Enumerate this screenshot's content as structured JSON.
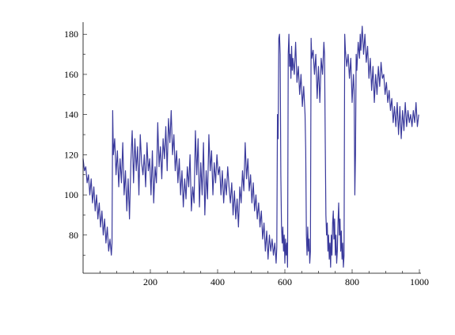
{
  "chart_data": {
    "type": "line",
    "title": "",
    "xlabel": "",
    "ylabel": "",
    "xlim": [
      0,
      1000
    ],
    "ylim": [
      61,
      186
    ],
    "grid": false,
    "legend": "none",
    "x_ticks": [
      200,
      400,
      600,
      800,
      1000
    ],
    "y_ticks": [
      80,
      100,
      120,
      140,
      160,
      180
    ],
    "x_tick_labels": [
      "200",
      "400",
      "600",
      "800",
      "1000"
    ],
    "y_tick_labels": [
      "80",
      "100",
      "120",
      "140",
      "160",
      "180"
    ],
    "series": [
      {
        "color": "#3a3a9c",
        "points": [
          [
            0,
            118
          ],
          [
            4,
            112
          ],
          [
            8,
            114
          ],
          [
            12,
            106
          ],
          [
            16,
            110
          ],
          [
            20,
            100
          ],
          [
            24,
            108
          ],
          [
            28,
            96
          ],
          [
            32,
            104
          ],
          [
            36,
            92
          ],
          [
            40,
            100
          ],
          [
            44,
            88
          ],
          [
            48,
            96
          ],
          [
            52,
            84
          ],
          [
            56,
            92
          ],
          [
            60,
            80
          ],
          [
            64,
            88
          ],
          [
            68,
            76
          ],
          [
            72,
            84
          ],
          [
            76,
            72
          ],
          [
            80,
            78
          ],
          [
            84,
            70
          ],
          [
            86,
            76
          ],
          [
            88,
            142
          ],
          [
            90,
            120
          ],
          [
            94,
            128
          ],
          [
            98,
            110
          ],
          [
            102,
            122
          ],
          [
            106,
            104
          ],
          [
            110,
            118
          ],
          [
            114,
            106
          ],
          [
            118,
            126
          ],
          [
            122,
            100
          ],
          [
            126,
            112
          ],
          [
            130,
            92
          ],
          [
            134,
            108
          ],
          [
            138,
            88
          ],
          [
            142,
            116
          ],
          [
            146,
            132
          ],
          [
            150,
            106
          ],
          [
            154,
            128
          ],
          [
            158,
            112
          ],
          [
            162,
            124
          ],
          [
            166,
            100
          ],
          [
            170,
            130
          ],
          [
            174,
            116
          ],
          [
            178,
            110
          ],
          [
            182,
            120
          ],
          [
            186,
            104
          ],
          [
            190,
            126
          ],
          [
            194,
            112
          ],
          [
            198,
            118
          ],
          [
            202,
            100
          ],
          [
            206,
            122
          ],
          [
            210,
            96
          ],
          [
            214,
            114
          ],
          [
            218,
            106
          ],
          [
            222,
            136
          ],
          [
            226,
            114
          ],
          [
            230,
            124
          ],
          [
            234,
            108
          ],
          [
            238,
            128
          ],
          [
            242,
            118
          ],
          [
            246,
            134
          ],
          [
            250,
            112
          ],
          [
            254,
            138
          ],
          [
            258,
            126
          ],
          [
            262,
            142
          ],
          [
            266,
            120
          ],
          [
            270,
            130
          ],
          [
            274,
            112
          ],
          [
            278,
            122
          ],
          [
            282,
            106
          ],
          [
            286,
            118
          ],
          [
            290,
            100
          ],
          [
            294,
            112
          ],
          [
            298,
            94
          ],
          [
            302,
            108
          ],
          [
            306,
            98
          ],
          [
            310,
            114
          ],
          [
            314,
            104
          ],
          [
            318,
            120
          ],
          [
            322,
            92
          ],
          [
            326,
            104
          ],
          [
            330,
            96
          ],
          [
            334,
            132
          ],
          [
            338,
            110
          ],
          [
            342,
            128
          ],
          [
            346,
            94
          ],
          [
            350,
            116
          ],
          [
            354,
            100
          ],
          [
            358,
            126
          ],
          [
            362,
            90
          ],
          [
            366,
            112
          ],
          [
            370,
            98
          ],
          [
            374,
            130
          ],
          [
            378,
            112
          ],
          [
            382,
            122
          ],
          [
            386,
            100
          ],
          [
            390,
            116
          ],
          [
            394,
            106
          ],
          [
            398,
            120
          ],
          [
            402,
            110
          ],
          [
            406,
            114
          ],
          [
            410,
            100
          ],
          [
            414,
            112
          ],
          [
            418,
            96
          ],
          [
            422,
            108
          ],
          [
            426,
            100
          ],
          [
            430,
            114
          ],
          [
            434,
            104
          ],
          [
            438,
            96
          ],
          [
            442,
            106
          ],
          [
            446,
            90
          ],
          [
            450,
            102
          ],
          [
            454,
            88
          ],
          [
            458,
            98
          ],
          [
            462,
            84
          ],
          [
            466,
            104
          ],
          [
            470,
            96
          ],
          [
            474,
            112
          ],
          [
            478,
            102
          ],
          [
            482,
            126
          ],
          [
            486,
            108
          ],
          [
            490,
            118
          ],
          [
            494,
            102
          ],
          [
            498,
            110
          ],
          [
            502,
            96
          ],
          [
            506,
            106
          ],
          [
            510,
            92
          ],
          [
            514,
            100
          ],
          [
            518,
            88
          ],
          [
            522,
            96
          ],
          [
            526,
            84
          ],
          [
            530,
            92
          ],
          [
            534,
            78
          ],
          [
            538,
            86
          ],
          [
            542,
            72
          ],
          [
            546,
            82
          ],
          [
            550,
            68
          ],
          [
            554,
            80
          ],
          [
            558,
            72
          ],
          [
            562,
            78
          ],
          [
            566,
            70
          ],
          [
            570,
            76
          ],
          [
            574,
            66
          ],
          [
            576,
            74
          ],
          [
            578,
            140
          ],
          [
            580,
            128
          ],
          [
            582,
            178
          ],
          [
            584,
            180
          ],
          [
            586,
            170
          ],
          [
            588,
            110
          ],
          [
            590,
            84
          ],
          [
            592,
            76
          ],
          [
            594,
            84
          ],
          [
            596,
            72
          ],
          [
            598,
            80
          ],
          [
            600,
            66
          ],
          [
            602,
            78
          ],
          [
            604,
            70
          ],
          [
            606,
            76
          ],
          [
            608,
            64
          ],
          [
            610,
            170
          ],
          [
            612,
            180
          ],
          [
            614,
            164
          ],
          [
            616,
            170
          ],
          [
            618,
            158
          ],
          [
            620,
            174
          ],
          [
            622,
            162
          ],
          [
            624,
            168
          ],
          [
            628,
            160
          ],
          [
            632,
            176
          ],
          [
            636,
            156
          ],
          [
            640,
            164
          ],
          [
            644,
            150
          ],
          [
            648,
            160
          ],
          [
            652,
            144
          ],
          [
            656,
            154
          ],
          [
            660,
            140
          ],
          [
            662,
            122
          ],
          [
            664,
            80
          ],
          [
            666,
            70
          ],
          [
            668,
            84
          ],
          [
            670,
            72
          ],
          [
            672,
            78
          ],
          [
            674,
            66
          ],
          [
            676,
            72
          ],
          [
            678,
            178
          ],
          [
            680,
            168
          ],
          [
            684,
            172
          ],
          [
            688,
            160
          ],
          [
            692,
            170
          ],
          [
            696,
            148
          ],
          [
            700,
            164
          ],
          [
            704,
            146
          ],
          [
            708,
            168
          ],
          [
            712,
            160
          ],
          [
            716,
            176
          ],
          [
            718,
            170
          ],
          [
            720,
            128
          ],
          [
            722,
            90
          ],
          [
            724,
            80
          ],
          [
            726,
            86
          ],
          [
            728,
            72
          ],
          [
            730,
            80
          ],
          [
            732,
            68
          ],
          [
            734,
            76
          ],
          [
            736,
            64
          ],
          [
            738,
            80
          ],
          [
            740,
            70
          ],
          [
            742,
            86
          ],
          [
            744,
            92
          ],
          [
            746,
            78
          ],
          [
            748,
            88
          ],
          [
            750,
            70
          ],
          [
            752,
            80
          ],
          [
            754,
            66
          ],
          [
            756,
            72
          ],
          [
            758,
            86
          ],
          [
            760,
            96
          ],
          [
            762,
            80
          ],
          [
            764,
            88
          ],
          [
            766,
            72
          ],
          [
            768,
            82
          ],
          [
            770,
            68
          ],
          [
            772,
            76
          ],
          [
            774,
            64
          ],
          [
            776,
            70
          ],
          [
            778,
            180
          ],
          [
            780,
            172
          ],
          [
            784,
            164
          ],
          [
            788,
            170
          ],
          [
            792,
            158
          ],
          [
            796,
            168
          ],
          [
            800,
            146
          ],
          [
            804,
            160
          ],
          [
            806,
            152
          ],
          [
            808,
            100
          ],
          [
            810,
            120
          ],
          [
            812,
            170
          ],
          [
            814,
            162
          ],
          [
            818,
            176
          ],
          [
            822,
            168
          ],
          [
            824,
            180
          ],
          [
            826,
            172
          ],
          [
            830,
            184
          ],
          [
            834,
            170
          ],
          [
            838,
            180
          ],
          [
            842,
            166
          ],
          [
            846,
            174
          ],
          [
            850,
            158
          ],
          [
            854,
            168
          ],
          [
            858,
            152
          ],
          [
            862,
            164
          ],
          [
            866,
            146
          ],
          [
            870,
            160
          ],
          [
            874,
            150
          ],
          [
            878,
            164
          ],
          [
            882,
            154
          ],
          [
            886,
            166
          ],
          [
            890,
            158
          ],
          [
            894,
            160
          ],
          [
            898,
            150
          ],
          [
            902,
            156
          ],
          [
            906,
            146
          ],
          [
            910,
            152
          ],
          [
            914,
            142
          ],
          [
            918,
            148
          ],
          [
            922,
            136
          ],
          [
            926,
            144
          ],
          [
            930,
            134
          ],
          [
            934,
            146
          ],
          [
            938,
            130
          ],
          [
            942,
            144
          ],
          [
            946,
            128
          ],
          [
            950,
            142
          ],
          [
            954,
            132
          ],
          [
            958,
            146
          ],
          [
            962,
            134
          ],
          [
            966,
            142
          ],
          [
            970,
            136
          ],
          [
            974,
            140
          ],
          [
            978,
            134
          ],
          [
            982,
            142
          ],
          [
            986,
            136
          ],
          [
            990,
            146
          ],
          [
            994,
            134
          ],
          [
            998,
            140
          ]
        ]
      }
    ]
  }
}
